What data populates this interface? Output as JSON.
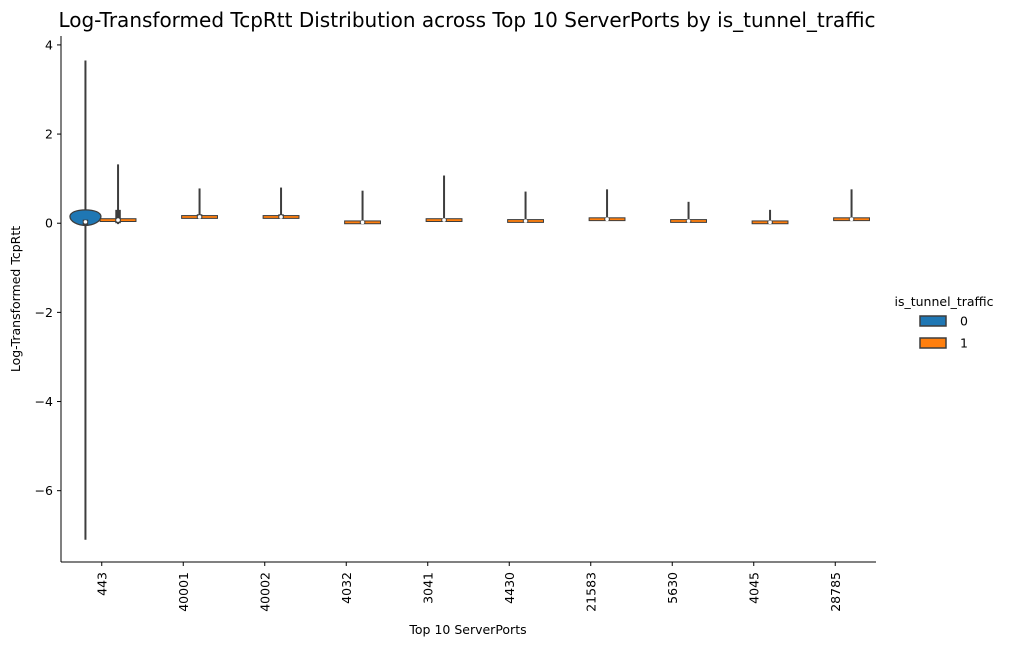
{
  "chart_data": {
    "type": "violin",
    "title": "Log-Transformed TcpRtt Distribution across Top 10 ServerPorts by is_tunnel_traffic",
    "xlabel": "Top 10 ServerPorts",
    "ylabel": "Log-Transformed TcpRtt",
    "categories": [
      "443",
      "40001",
      "40002",
      "4032",
      "3041",
      "4430",
      "21583",
      "5630",
      "4045",
      "28785"
    ],
    "ylim": [
      -7.6,
      4.2
    ],
    "yticks": [
      -6,
      -4,
      -2,
      0,
      2,
      4
    ],
    "ytick_labels": [
      "−6",
      "−4",
      "−2",
      "0",
      "2",
      "4"
    ],
    "grid": false,
    "legend": {
      "title": "is_tunnel_traffic",
      "placement": "right",
      "entries": [
        {
          "label": "0",
          "color": "#1f77b4"
        },
        {
          "label": "1",
          "color": "#ff7f0e"
        }
      ]
    },
    "series": [
      {
        "name": "0",
        "color": "#1f77b4",
        "violins": [
          {
            "category": "443",
            "min": -7.1,
            "max": 3.65,
            "q1": -0.05,
            "median": 0.03,
            "q3": 0.08,
            "body": [
              -0.05,
              0.3
            ],
            "peak": 0.15
          }
        ]
      },
      {
        "name": "1",
        "color": "#ff7f0e",
        "violins": [
          {
            "category": "443",
            "min": -0.02,
            "max": 1.32,
            "q1": 0.0,
            "median": 0.07,
            "q3": 0.3
          },
          {
            "category": "40001",
            "min": 0.1,
            "max": 0.78,
            "q1": 0.1,
            "median": 0.14,
            "q3": 0.2
          },
          {
            "category": "40002",
            "min": 0.1,
            "max": 0.8,
            "q1": 0.1,
            "median": 0.14,
            "q3": 0.2
          },
          {
            "category": "4032",
            "min": -0.02,
            "max": 0.73,
            "q1": -0.01,
            "median": 0.02,
            "q3": 0.04
          },
          {
            "category": "3041",
            "min": 0.04,
            "max": 1.07,
            "q1": 0.05,
            "median": 0.07,
            "q3": 0.09
          },
          {
            "category": "4430",
            "min": 0.02,
            "max": 0.71,
            "q1": 0.03,
            "median": 0.05,
            "q3": 0.07
          },
          {
            "category": "21583",
            "min": 0.06,
            "max": 0.76,
            "q1": 0.07,
            "median": 0.09,
            "q3": 0.11
          },
          {
            "category": "5630",
            "min": 0.02,
            "max": 0.48,
            "q1": 0.03,
            "median": 0.05,
            "q3": 0.06
          },
          {
            "category": "4045",
            "min": -0.02,
            "max": 0.3,
            "q1": -0.01,
            "median": 0.02,
            "q3": 0.04
          },
          {
            "category": "28785",
            "min": 0.06,
            "max": 0.76,
            "q1": 0.07,
            "median": 0.09,
            "q3": 0.11
          }
        ]
      }
    ]
  }
}
